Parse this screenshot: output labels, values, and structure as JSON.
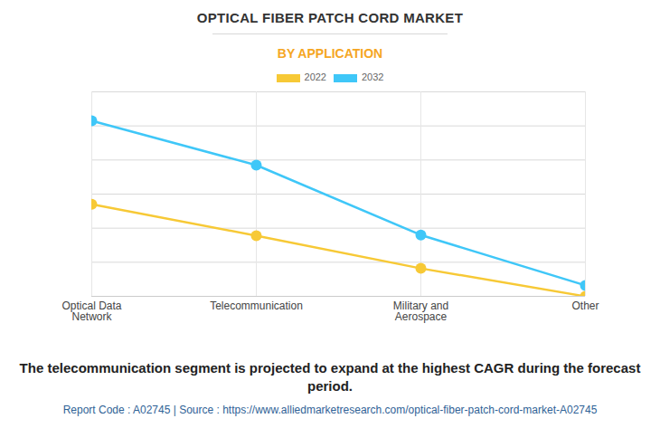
{
  "chart_data": {
    "type": "line",
    "title": "OPTICAL FIBER PATCH CORD MARKET",
    "subtitle": "BY APPLICATION",
    "caption": "The telecommunication segment is projected to expand at the highest CAGR during the forecast period.",
    "note": "Report Code : A02745  |  Source : https://www.alliedmarketresearch.com/optical-fiber-patch-cord-market-A02745",
    "categories": [
      "Optical Data Network",
      "Telecommunication",
      "Military and Aerospace",
      "Other"
    ],
    "series": [
      {
        "name": "2022",
        "color": "#f7c936",
        "values": [
          27,
          17.8,
          8.2,
          0
        ],
        "marker": "circle",
        "line_style": "solid"
      },
      {
        "name": "2032",
        "color": "#3fc7f8",
        "values": [
          51.5,
          38.5,
          18,
          3.2
        ],
        "marker": "circle",
        "line_style": "solid"
      }
    ],
    "ylim": [
      0,
      60
    ],
    "yticks": [
      0,
      10,
      20,
      30,
      40,
      50,
      60
    ],
    "grid": true,
    "tick_labels": "x",
    "legend": "top"
  }
}
